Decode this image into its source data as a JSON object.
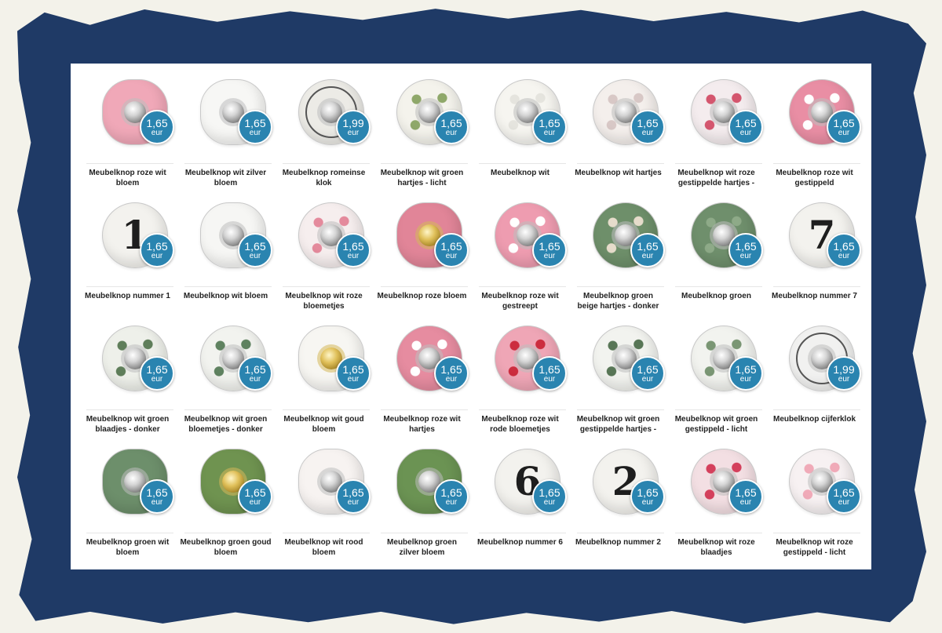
{
  "currency": "eur",
  "products": [
    {
      "name": "Meubelknop roze wit bloem",
      "price": "1,65",
      "style": "flower",
      "base": "#f0a8b8",
      "accent": "#ffffff",
      "center": "silver"
    },
    {
      "name": "Meubelknop wit zilver bloem",
      "price": "1,65",
      "style": "flower",
      "base": "#f7f7f5",
      "accent": "#d8d8d8",
      "center": "silver"
    },
    {
      "name": "Meubelknop romeinse klok",
      "price": "1,99",
      "style": "clock",
      "base": "#ecebe6",
      "accent": "#444444",
      "center": "silver"
    },
    {
      "name": "Meubelknop wit groen hartjes - licht",
      "price": "1,65",
      "style": "round",
      "base": "#f4f3ec",
      "accent": "#8fa86a",
      "center": "silver"
    },
    {
      "name": "Meubelknop wit",
      "price": "1,65",
      "style": "round",
      "base": "#f6f5f0",
      "accent": "#e5e4de",
      "center": "silver"
    },
    {
      "name": "Meubelknop wit hartjes",
      "price": "1,65",
      "style": "round",
      "base": "#f4efec",
      "accent": "#d8c8c6",
      "center": "silver"
    },
    {
      "name": "Meubelknop wit roze gestippelde hartjes -",
      "price": "1,65",
      "style": "round",
      "base": "#f4ecee",
      "accent": "#d4566e",
      "center": "silver"
    },
    {
      "name": "Meubelknop roze wit gestippeld",
      "price": "1,65",
      "style": "round",
      "base": "#e98ea4",
      "accent": "#ffffff",
      "center": "silver"
    },
    {
      "name": "Meubelknop nummer 1",
      "price": "1,65",
      "style": "number",
      "numeral": "1",
      "base": "#f3f2ee",
      "accent": "#222222",
      "center": "none"
    },
    {
      "name": "Meubelknop wit bloem",
      "price": "1,65",
      "style": "flower",
      "base": "#f6f6f4",
      "accent": "#dcdcdc",
      "center": "silver"
    },
    {
      "name": "Meubelknop wit roze bloemetjes",
      "price": "1,65",
      "style": "round",
      "base": "#f6eeee",
      "accent": "#e48a9c",
      "center": "silver"
    },
    {
      "name": "Meubelknop roze bloem",
      "price": "1,65",
      "style": "flower",
      "base": "#e18598",
      "accent": "#f3c0cc",
      "center": "gold"
    },
    {
      "name": "Meubelknop roze wit gestreept",
      "price": "1,65",
      "style": "round",
      "base": "#ee9cb0",
      "accent": "#ffffff",
      "center": "silver"
    },
    {
      "name": "Meubelknop groen beige hartjes - donker",
      "price": "1,65",
      "style": "round",
      "base": "#6e8f6a",
      "accent": "#e6dccb",
      "center": "silver"
    },
    {
      "name": "Meubelknop groen",
      "price": "1,65",
      "style": "round",
      "base": "#6f8f6c",
      "accent": "#8eaa88",
      "center": "silver"
    },
    {
      "name": "Meubelknop nummer 7",
      "price": "1,65",
      "style": "number",
      "numeral": "7",
      "base": "#f3f2ee",
      "accent": "#222222",
      "center": "none"
    },
    {
      "name": "Meubelknop wit groen blaadjes - donker",
      "price": "1,65",
      "style": "round",
      "base": "#eef0ea",
      "accent": "#5f7e5a",
      "center": "silver"
    },
    {
      "name": "Meubelknop wit groen bloemetjes - donker",
      "price": "1,65",
      "style": "round",
      "base": "#f2f3ef",
      "accent": "#5f8260",
      "center": "silver"
    },
    {
      "name": "Meubelknop wit goud bloem",
      "price": "1,65",
      "style": "flower",
      "base": "#f7f6f2",
      "accent": "#e3dcc8",
      "center": "gold"
    },
    {
      "name": "Meubelknop roze wit hartjes",
      "price": "1,65",
      "style": "round",
      "base": "#e68ca0",
      "accent": "#ffffff",
      "center": "silver"
    },
    {
      "name": "Meubelknop roze wit rode bloemetjes",
      "price": "1,65",
      "style": "round",
      "base": "#efa6b6",
      "accent": "#cc2d3f",
      "center": "silver"
    },
    {
      "name": "Meubelknop wit groen gestippelde hartjes -",
      "price": "1,65",
      "style": "round",
      "base": "#f2f3ef",
      "accent": "#587656",
      "center": "silver"
    },
    {
      "name": "Meubelknop wit groen gestippeld - licht",
      "price": "1,65",
      "style": "round",
      "base": "#f2f3ef",
      "accent": "#7a9674",
      "center": "silver"
    },
    {
      "name": "Meubelknop cijferklok",
      "price": "1,99",
      "style": "clock",
      "base": "#f1f1f0",
      "accent": "#333333",
      "center": "silver"
    },
    {
      "name": "Meubelknop groen wit bloem",
      "price": "1,65",
      "style": "flower",
      "base": "#6d8f6b",
      "accent": "#e9efe6",
      "center": "silver"
    },
    {
      "name": "Meubelknop groen goud bloem",
      "price": "1,65",
      "style": "flower",
      "base": "#6f9350",
      "accent": "#a8c27c",
      "center": "gold"
    },
    {
      "name": "Meubelknop wit rood bloem",
      "price": "1,65",
      "style": "flower",
      "base": "#f7f3f1",
      "accent": "#d0363e",
      "center": "silver"
    },
    {
      "name": "Meubelknop groen zilver bloem",
      "price": "1,65",
      "style": "flower",
      "base": "#6b9353",
      "accent": "#9fbd7f",
      "center": "silver"
    },
    {
      "name": "Meubelknop nummer 6",
      "price": "1,65",
      "style": "number",
      "numeral": "6",
      "base": "#f3f2ee",
      "accent": "#222222",
      "center": "none"
    },
    {
      "name": "Meubelknop nummer 2",
      "price": "1,65",
      "style": "number",
      "numeral": "2",
      "base": "#f3f2ee",
      "accent": "#222222",
      "center": "none"
    },
    {
      "name": "Meubelknop wit roze blaadjes",
      "price": "1,65",
      "style": "round",
      "base": "#f3dfe3",
      "accent": "#d4405c",
      "center": "silver"
    },
    {
      "name": "Meubelknop wit roze gestippeld - licht",
      "price": "1,65",
      "style": "round",
      "base": "#f7f1f2",
      "accent": "#f0aab8",
      "center": "silver"
    }
  ]
}
